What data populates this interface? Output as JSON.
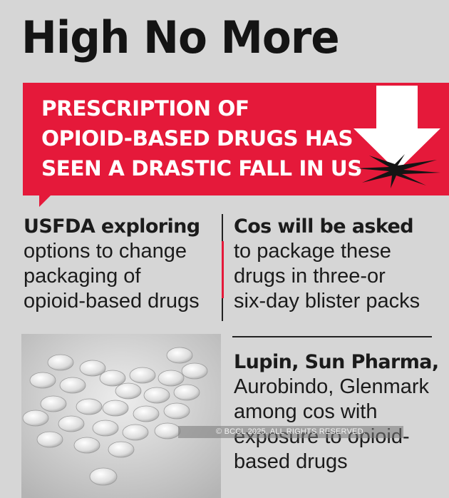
{
  "title": "High No More",
  "banner": {
    "lines": [
      "PRESCRIPTION OF",
      "OPIOID-BASED DRUGS HAS",
      "SEEN A DRASTIC FALL IN US"
    ],
    "icon": "down-arrow-crash-icon",
    "color": "#e5193a"
  },
  "left_block": {
    "heading": "USFDA exploring",
    "lines": [
      "options to change",
      "packaging of",
      "opioid-based drugs"
    ]
  },
  "right_block_1": {
    "heading": "Cos will be asked",
    "lines": [
      "to package these",
      "drugs in three-or",
      "six-day blister packs"
    ]
  },
  "right_block_2": {
    "heading": "Lupin, Sun Pharma,",
    "lines": [
      "Aurobindo, Glenmark",
      "among cos with",
      "exposure to opioid-",
      "based drugs"
    ]
  },
  "image": {
    "icon": "pills-photo"
  },
  "watermark": "© BCCL 2025. ALL RIGHTS RESERVED."
}
